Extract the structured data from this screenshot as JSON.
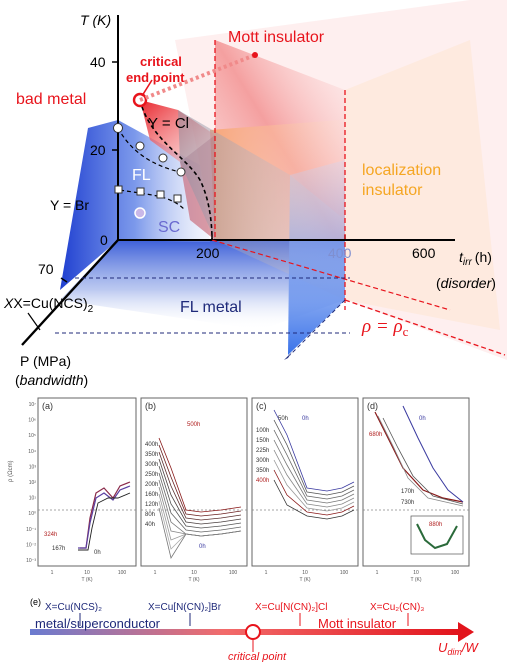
{
  "phase_diagram": {
    "y_axis_label": "T (K)",
    "y_ticks": [
      "40",
      "20",
      "0"
    ],
    "x_axis_label": "t",
    "x_axis_sub": "irr",
    "x_axis_unit": "(h)",
    "x_axis_note": "disorder",
    "x_ticks": [
      "200",
      "400",
      "600"
    ],
    "p_tick": "70",
    "p_axis_label": "P (MPa)",
    "p_axis_note": "bandwidth",
    "labels": {
      "mott_insulator": "Mott insulator",
      "critical_end_point_1": "critical",
      "critical_end_point_2": "end point",
      "bad_metal": "bad metal",
      "y_cl": "Y = Cl",
      "y_br": "Y = Br",
      "fl": "FL",
      "sc": "SC",
      "localization_1": "localization",
      "localization_2": "insulator",
      "fl_metal": "FL metal",
      "x_ncs": "X=Cu(NCS)",
      "x_ncs_sub": "2",
      "rho_eq": "ρ = ρ",
      "rho_sub": "c"
    },
    "colors": {
      "red": "#e8141c",
      "orange": "#f5a623",
      "blue": "#2f5bd8",
      "navy": "#1f2a7a"
    }
  },
  "resistivity_panels": [
    {
      "tag": "(a)",
      "x_ticks": [
        "1",
        "10",
        "100"
      ],
      "curve_labels": [
        "324h",
        "167h",
        "0h"
      ],
      "xlabel": "T (K)",
      "ylabel": "ρ (Ωcm)"
    },
    {
      "tag": "(b)",
      "x_ticks": [
        "1",
        "10",
        "100"
      ],
      "curve_labels": [
        "500h",
        "400h",
        "350h",
        "300h",
        "250h",
        "200h",
        "160h",
        "120h",
        "80h",
        "40h",
        "0h"
      ],
      "xlabel": "T (K)"
    },
    {
      "tag": "(c)",
      "x_ticks": [
        "1",
        "10",
        "100"
      ],
      "curve_labels": [
        "50h",
        "100h",
        "150h",
        "225h",
        "300h",
        "350h",
        "400h",
        "0h"
      ],
      "xlabel": "T (K)"
    },
    {
      "tag": "(d)",
      "x_ticks": [
        "1",
        "10",
        "100"
      ],
      "curve_labels": [
        "680h",
        "0h",
        "170h",
        "730h",
        "880h"
      ],
      "xlabel": "T (K)"
    }
  ],
  "y_ticks_panels": [
    "10⁷",
    "10⁶",
    "10⁵",
    "10⁴",
    "10³",
    "10²",
    "10¹",
    "10⁰",
    "10⁻¹",
    "10⁻²",
    "10⁻³"
  ],
  "bottom_scale": {
    "tag": "(e)",
    "materials": [
      "X=Cu(NCS)₂",
      "X=Cu[N(CN)₂]Br",
      "X=Cu[N(CN)₂]Cl",
      "X=Cu₂(CN)₃"
    ],
    "left_label": "metal/superconductor",
    "right_label": "Mott insulator",
    "critical_point": "critical point",
    "axis_label": "U",
    "axis_sub": "dim",
    "axis_tail": "/W"
  }
}
